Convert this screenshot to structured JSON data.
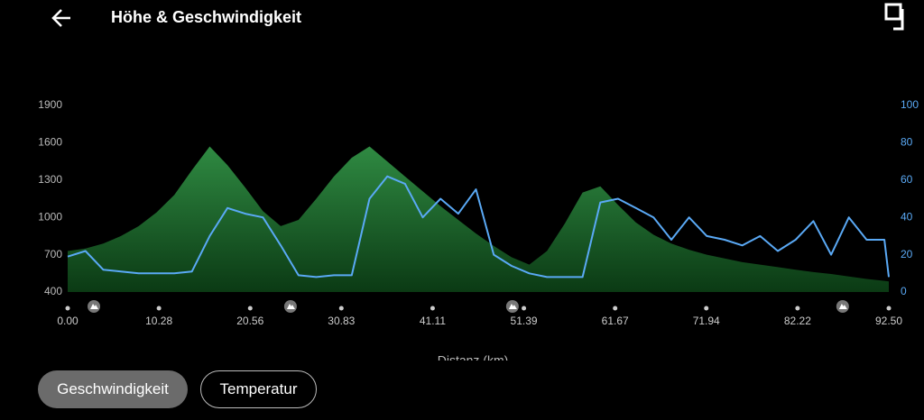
{
  "header": {
    "title": "Höhe & Geschwindigkeit"
  },
  "chart_data": {
    "type": "line",
    "x_label": "Distanz (km)",
    "x": [
      0,
      2,
      4,
      6,
      8,
      10,
      12,
      14,
      16,
      18,
      20,
      22,
      24,
      26,
      28,
      30,
      32,
      34,
      36,
      38,
      40,
      42,
      44,
      46,
      48,
      50,
      52,
      54,
      56,
      58,
      60,
      62,
      64,
      66,
      68,
      70,
      72,
      74,
      76,
      78,
      80,
      82,
      84,
      86,
      88,
      90,
      92,
      92.5
    ],
    "series": [
      {
        "color": "#2a7a3b",
        "fill": "area",
        "axis": "y",
        "values": [
          730,
          750,
          790,
          850,
          930,
          1040,
          1180,
          1380,
          1570,
          1420,
          1240,
          1050,
          930,
          980,
          1150,
          1330,
          1480,
          1570,
          1450,
          1330,
          1210,
          1090,
          980,
          870,
          770,
          680,
          620,
          730,
          950,
          1200,
          1250,
          1100,
          960,
          860,
          790,
          740,
          700,
          670,
          640,
          620,
          600,
          580,
          560,
          545,
          525,
          505,
          490,
          485
        ]
      },
      {
        "color": "#5aa9f5",
        "axis": "y2",
        "values": [
          19,
          22,
          12,
          11,
          10,
          10,
          10,
          11,
          30,
          45,
          42,
          40,
          25,
          9,
          8,
          9,
          9,
          50,
          62,
          58,
          40,
          50,
          42,
          55,
          20,
          14,
          10,
          8,
          8,
          8,
          48,
          50,
          45,
          40,
          28,
          40,
          30,
          28,
          25,
          30,
          22,
          28,
          38,
          20,
          40,
          28,
          28,
          8
        ]
      }
    ],
    "xlim": [
      0,
      92.5
    ],
    "xticks": [
      {
        "value": 0,
        "label": "0.00"
      },
      10.28,
      20.56,
      30.83,
      41.11,
      51.39,
      61.67,
      71.94,
      82.22,
      {
        "value": 92.5,
        "label": "92.50"
      }
    ],
    "ylim": [
      400,
      1900
    ],
    "yticks": [
      400,
      700,
      1000,
      1300,
      1600,
      1900
    ],
    "y2lim": [
      0,
      100
    ],
    "y2ticks": [
      0,
      20,
      40,
      60,
      80,
      100
    ],
    "markers": [
      2.95,
      25.1,
      50.1,
      87.3
    ]
  },
  "buttons": [
    "Geschwindigkeit",
    "Temperatur"
  ]
}
